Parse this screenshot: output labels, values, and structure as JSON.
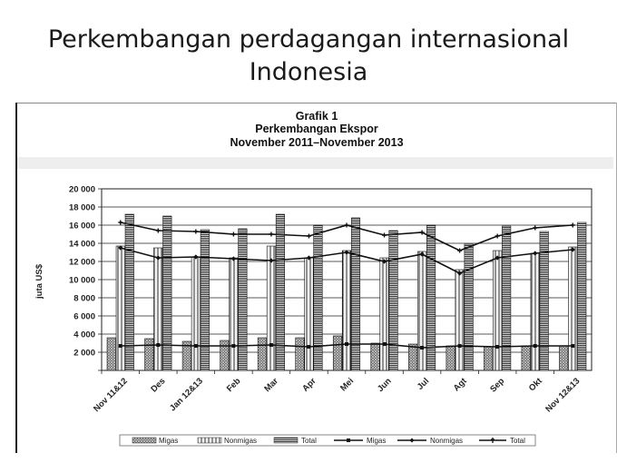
{
  "slide": {
    "title_line1": "Perkembangan perdagangan internasional",
    "title_line2": "Indonesia"
  },
  "chart_data": {
    "type": "bar",
    "title_lines": [
      "Grafik 1",
      "Perkembangan Ekspor",
      "November 2011–November 2013"
    ],
    "ylabel": "juta US$",
    "xlabel": "",
    "ylim": [
      0,
      20000
    ],
    "yticks": [
      0,
      2000,
      4000,
      6000,
      8000,
      10000,
      12000,
      14000,
      16000,
      18000,
      20000
    ],
    "ytick_labels": [
      "",
      "2 000",
      "4 000",
      "6 000",
      "8 000",
      "10 000",
      "12 000",
      "14 000",
      "16 000",
      "18 000",
      "20 000"
    ],
    "grid": true,
    "legend_position": "bottom",
    "categories": [
      "Nov 11&12",
      "Des",
      "Jan 12&13",
      "Feb",
      "Mar",
      "Apr",
      "Mei",
      "Jun",
      "Jul",
      "Agt",
      "Sep",
      "Okt",
      "Nov 12&13"
    ],
    "series": [
      {
        "name": "Migas",
        "kind": "bar",
        "pattern": "cross",
        "values": [
          3600,
          3500,
          3200,
          3300,
          3600,
          3600,
          3800,
          3000,
          2900,
          2700,
          2600,
          2700,
          2700
        ]
      },
      {
        "name": "Nonmigas",
        "kind": "bar",
        "pattern": "stripes",
        "values": [
          13700,
          13500,
          12500,
          12400,
          13700,
          12400,
          13200,
          12400,
          13100,
          11100,
          13200,
          12900,
          13600
        ]
      },
      {
        "name": "Total",
        "kind": "bar",
        "pattern": "hlines",
        "values": [
          17200,
          17000,
          15500,
          15600,
          17200,
          16000,
          16800,
          15400,
          16000,
          13900,
          15900,
          15300,
          16300
        ]
      },
      {
        "name": "Migas",
        "kind": "line",
        "values": [
          2700,
          2800,
          2700,
          2700,
          2800,
          2600,
          2900,
          2900,
          2500,
          2700,
          2600,
          2700,
          2700
        ]
      },
      {
        "name": "Nonmigas",
        "kind": "line",
        "values": [
          13500,
          12400,
          12500,
          12300,
          12100,
          12400,
          13000,
          12000,
          12800,
          10700,
          12400,
          12900,
          13300
        ]
      },
      {
        "name": "Total",
        "kind": "line",
        "values": [
          16300,
          15400,
          15300,
          15000,
          15000,
          14800,
          16000,
          14900,
          15200,
          13200,
          14800,
          15700,
          16000
        ]
      }
    ]
  }
}
